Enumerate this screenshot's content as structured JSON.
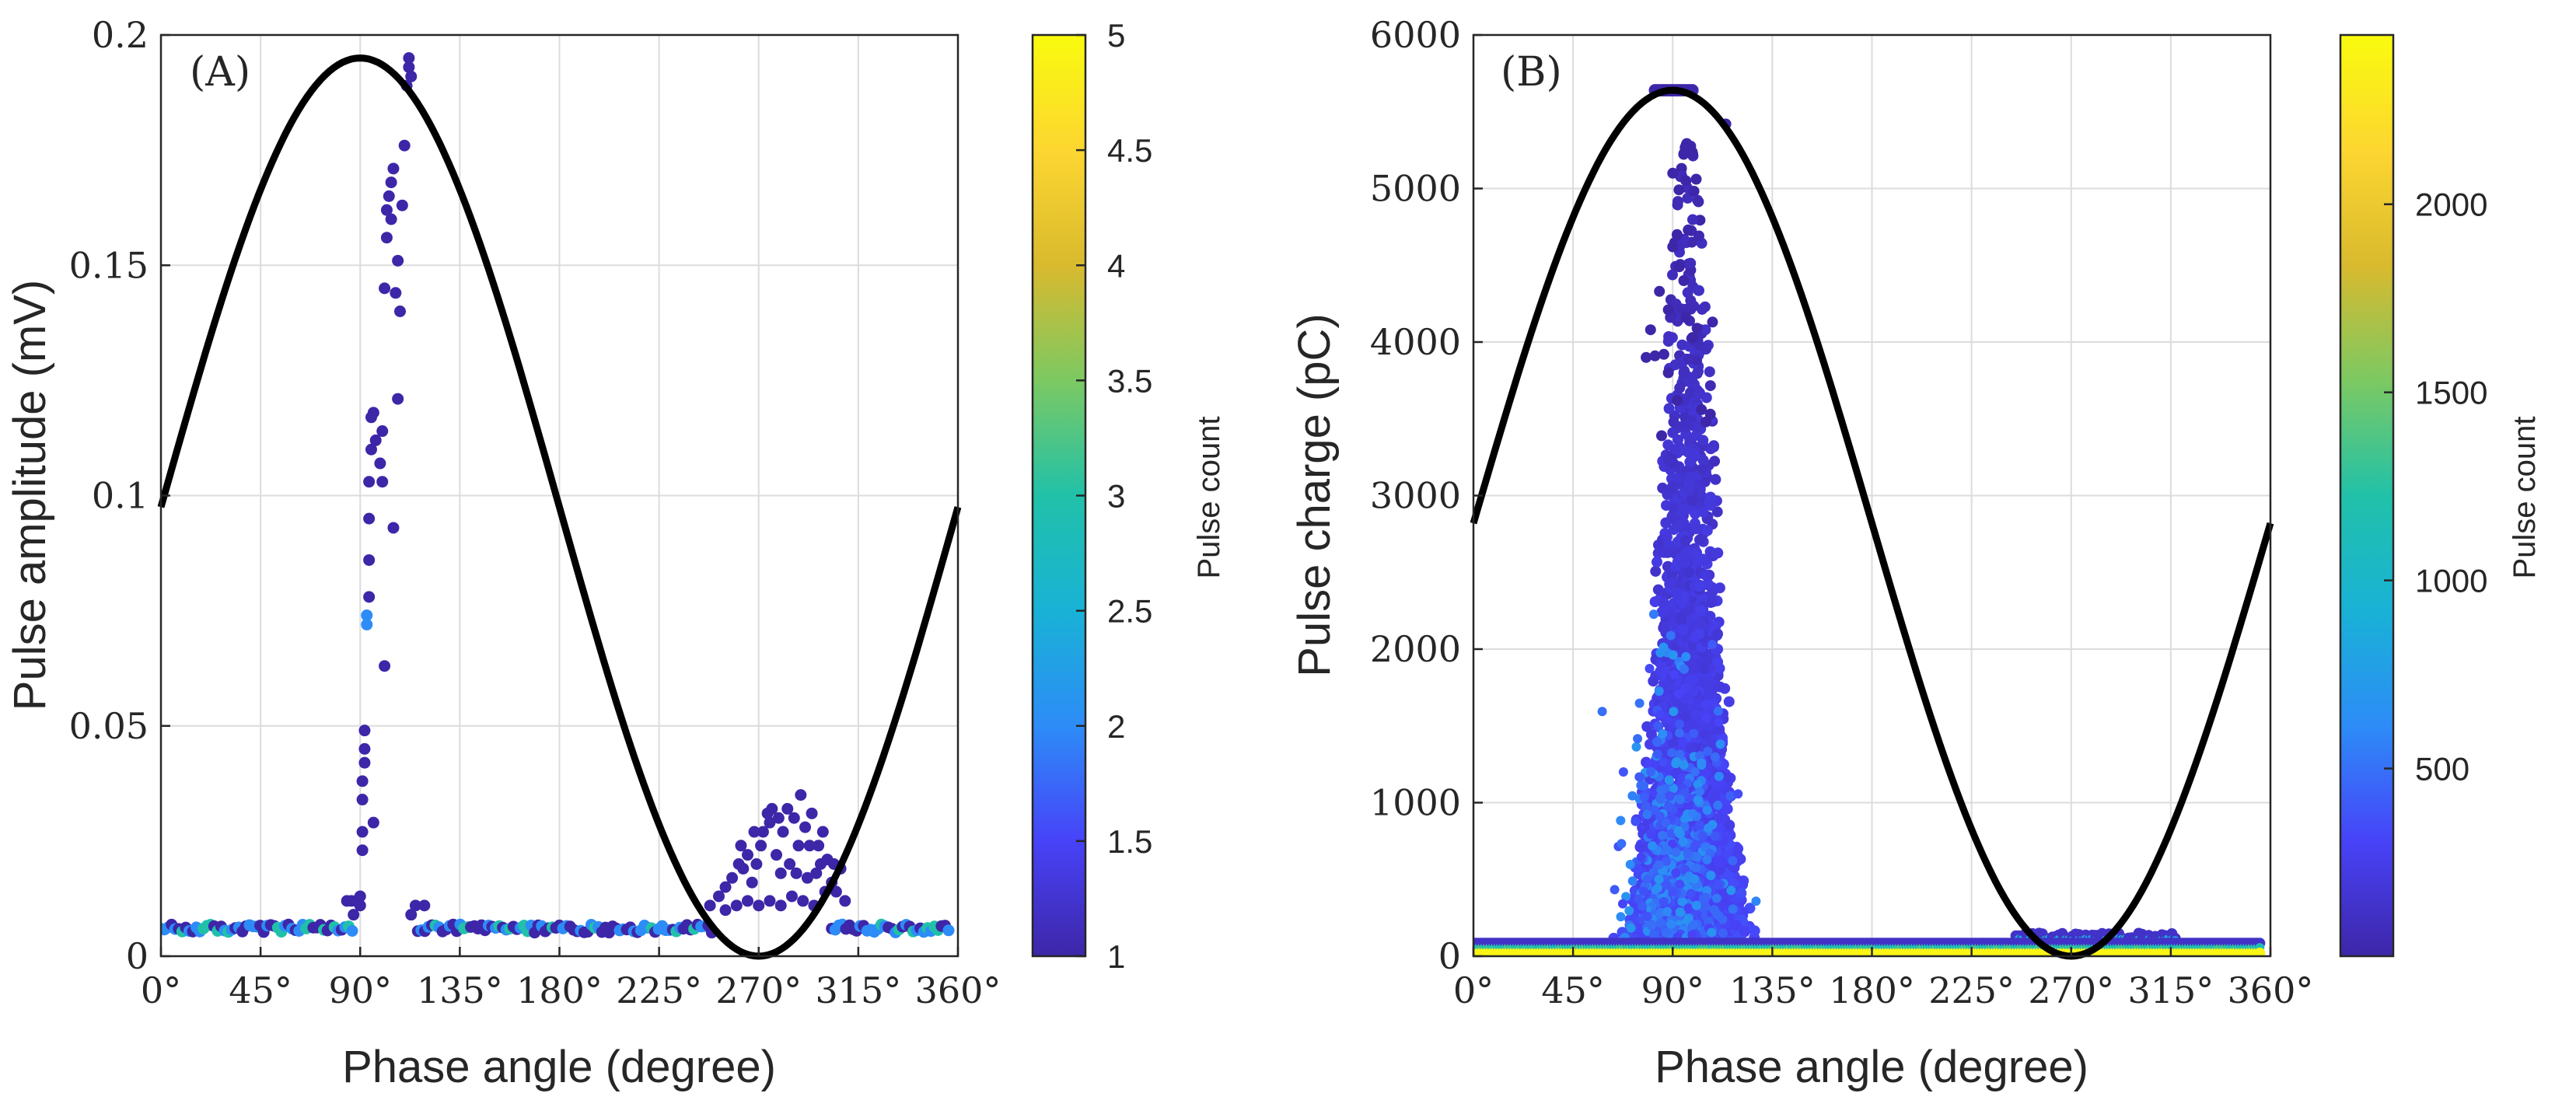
{
  "colormap": [
    "#3e26a8",
    "#4743f8",
    "#2d8cf7",
    "#19b2d6",
    "#21c1a9",
    "#7cc962",
    "#d9ba2e",
    "#fdd631",
    "#f9fb0e"
  ],
  "chart_data": [
    {
      "type": "scatter",
      "panel_label": "(A)",
      "xlabel": "Phase angle (degree)",
      "ylabel": "Pulse amplitude (mV)",
      "xlim": [
        0,
        360
      ],
      "ylim": [
        0,
        0.2
      ],
      "xticks": [
        0,
        45,
        90,
        135,
        180,
        225,
        270,
        315,
        360
      ],
      "xtick_labels": [
        "0°",
        "45°",
        "90°",
        "135°",
        "180°",
        "225°",
        "270°",
        "315°",
        "360°"
      ],
      "yticks": [
        0,
        0.05,
        0.1,
        0.15,
        0.2
      ],
      "ytick_labels": [
        "0",
        "0.05",
        "0.1",
        "0.15",
        "0.2"
      ],
      "grid": true,
      "sine_reference": {
        "offset": 0.0975,
        "amplitude": 0.0975,
        "color": "#000000"
      },
      "colorbar": {
        "label": "Pulse count",
        "range": [
          1,
          5
        ],
        "ticks": [
          1,
          1.5,
          2,
          2.5,
          3,
          3.5,
          4,
          4.5,
          5
        ],
        "tick_labels": [
          "1",
          "1.5",
          "2",
          "2.5",
          "3",
          "3.5",
          "4",
          "4.5",
          "5"
        ]
      },
      "points": [
        [
          88,
          0.012,
          1
        ],
        [
          90,
          0.013,
          1
        ],
        [
          91,
          0.023,
          1
        ],
        [
          91,
          0.027,
          1
        ],
        [
          91,
          0.034,
          1
        ],
        [
          91,
          0.038,
          1
        ],
        [
          92,
          0.042,
          1
        ],
        [
          92,
          0.045,
          1
        ],
        [
          92,
          0.049,
          1
        ],
        [
          93,
          0.074,
          2
        ],
        [
          93,
          0.072,
          2
        ],
        [
          94,
          0.078,
          1
        ],
        [
          94,
          0.086,
          1
        ],
        [
          94,
          0.095,
          1
        ],
        [
          94,
          0.103,
          1
        ],
        [
          95,
          0.11,
          1
        ],
        [
          95,
          0.117,
          1
        ],
        [
          96,
          0.118,
          1
        ],
        [
          96,
          0.029,
          1
        ],
        [
          97,
          0.112,
          1
        ],
        [
          99,
          0.107,
          1
        ],
        [
          100,
          0.114,
          1
        ],
        [
          100,
          0.103,
          1
        ],
        [
          101,
          0.063,
          1
        ],
        [
          101,
          0.145,
          1
        ],
        [
          102,
          0.156,
          1
        ],
        [
          102,
          0.162,
          1
        ],
        [
          103,
          0.165,
          1
        ],
        [
          104,
          0.168,
          1
        ],
        [
          104,
          0.16,
          1
        ],
        [
          105,
          0.171,
          1
        ],
        [
          105,
          0.093,
          1
        ],
        [
          106,
          0.144,
          1
        ],
        [
          107,
          0.151,
          1
        ],
        [
          107,
          0.121,
          1
        ],
        [
          108,
          0.14,
          1
        ],
        [
          109,
          0.163,
          1
        ],
        [
          110,
          0.176,
          1
        ],
        [
          111,
          0.189,
          1
        ],
        [
          112,
          0.193,
          1
        ],
        [
          112,
          0.195,
          1
        ],
        [
          113,
          0.191,
          1
        ],
        [
          115,
          0.011,
          1
        ],
        [
          119,
          0.011,
          1
        ],
        [
          84,
          0.012,
          1
        ],
        [
          86,
          0.012,
          1
        ],
        [
          87,
          0.009,
          1
        ],
        [
          90,
          0.011,
          1
        ],
        [
          113,
          0.009,
          1
        ],
        [
          248,
          0.011,
          1
        ],
        [
          252,
          0.013,
          1
        ],
        [
          255,
          0.015,
          1
        ],
        [
          258,
          0.017,
          1
        ],
        [
          261,
          0.02,
          1
        ],
        [
          263,
          0.019,
          1
        ],
        [
          265,
          0.022,
          1
        ],
        [
          267,
          0.016,
          1
        ],
        [
          269,
          0.02,
          1
        ],
        [
          271,
          0.024,
          1
        ],
        [
          272,
          0.027,
          1
        ],
        [
          274,
          0.031,
          1
        ],
        [
          275,
          0.029,
          1
        ],
        [
          276,
          0.032,
          1
        ],
        [
          278,
          0.022,
          1
        ],
        [
          279,
          0.03,
          1
        ],
        [
          281,
          0.027,
          1
        ],
        [
          283,
          0.032,
          1
        ],
        [
          284,
          0.02,
          1
        ],
        [
          286,
          0.03,
          1
        ],
        [
          288,
          0.024,
          1
        ],
        [
          289,
          0.035,
          1
        ],
        [
          291,
          0.028,
          1
        ],
        [
          293,
          0.024,
          1
        ],
        [
          294,
          0.031,
          1
        ],
        [
          296,
          0.018,
          1
        ],
        [
          297,
          0.024,
          1
        ],
        [
          299,
          0.027,
          1
        ],
        [
          301,
          0.021,
          1
        ],
        [
          303,
          0.016,
          1
        ],
        [
          305,
          0.014,
          1
        ],
        [
          307,
          0.019,
          1
        ],
        [
          309,
          0.012,
          1
        ],
        [
          255,
          0.01,
          1
        ],
        [
          260,
          0.011,
          1
        ],
        [
          265,
          0.012,
          1
        ],
        [
          270,
          0.011,
          1
        ],
        [
          275,
          0.012,
          1
        ],
        [
          280,
          0.011,
          1
        ],
        [
          285,
          0.013,
          1
        ],
        [
          290,
          0.012,
          1
        ],
        [
          295,
          0.011,
          1
        ],
        [
          300,
          0.014,
          1
        ],
        [
          262,
          0.024,
          1
        ],
        [
          268,
          0.027,
          1
        ],
        [
          280,
          0.018,
          1
        ],
        [
          292,
          0.017,
          1
        ],
        [
          298,
          0.02,
          1
        ],
        [
          304,
          0.02,
          1
        ],
        [
          287,
          0.018,
          1
        ]
      ],
      "baseline_bands": [
        {
          "x_start": 0,
          "x_end": 87,
          "y": 0.006
        },
        {
          "x_start": 116,
          "x_end": 250,
          "y": 0.006
        },
        {
          "x_start": 303,
          "x_end": 357,
          "y": 0.006
        }
      ]
    },
    {
      "type": "scatter",
      "panel_label": "(B)",
      "xlabel": "Phase angle (degree)",
      "ylabel": "Pulse charge (pC)",
      "xlim": [
        0,
        360
      ],
      "ylim": [
        0,
        6000
      ],
      "xticks": [
        0,
        45,
        90,
        135,
        180,
        225,
        270,
        315,
        360
      ],
      "xtick_labels": [
        "0°",
        "45°",
        "90°",
        "135°",
        "180°",
        "225°",
        "270°",
        "315°",
        "360°"
      ],
      "yticks": [
        0,
        1000,
        2000,
        3000,
        4000,
        5000,
        6000
      ],
      "ytick_labels": [
        "0",
        "1000",
        "2000",
        "3000",
        "4000",
        "5000",
        "6000"
      ],
      "grid": true,
      "sine_reference": {
        "offset": 2820,
        "amplitude": 2820,
        "color": "#000000"
      },
      "colorbar": {
        "label": "Pulse count",
        "range": [
          1,
          2450
        ],
        "ticks": [
          500,
          1000,
          1500,
          2000
        ],
        "tick_labels": [
          "500",
          "1000",
          "1500",
          "2000"
        ]
      },
      "saturation_level": 5640,
      "cluster": {
        "x_center": 97,
        "x_spread": 22,
        "x_min": 58,
        "x_max": 135,
        "y_peak": 5100
      },
      "outliers": [
        [
          78,
          3900
        ],
        [
          80,
          4080
        ],
        [
          82,
          3910
        ],
        [
          84,
          4330
        ],
        [
          86,
          3920
        ],
        [
          88,
          4210
        ],
        [
          90,
          4620
        ],
        [
          92,
          4700
        ],
        [
          93,
          4490
        ],
        [
          95,
          4400
        ],
        [
          96,
          4160
        ],
        [
          97,
          4730
        ],
        [
          99,
          4030
        ],
        [
          101,
          4090
        ],
        [
          103,
          3560
        ],
        [
          105,
          3480
        ],
        [
          108,
          4130
        ],
        [
          90,
          5100
        ],
        [
          96,
          5050
        ],
        [
          114,
          5420
        ],
        [
          85,
          3390
        ],
        [
          107,
          3530
        ],
        [
          88,
          3800
        ],
        [
          92,
          3620
        ]
      ],
      "negative_cluster": {
        "x_start": 245,
        "x_end": 318,
        "y": 130
      }
    }
  ]
}
